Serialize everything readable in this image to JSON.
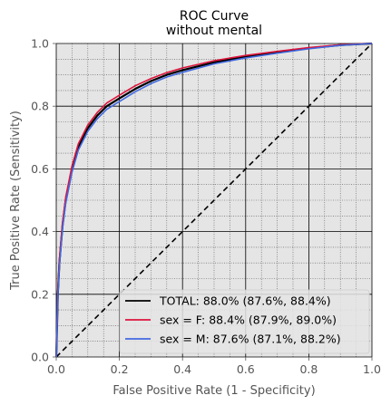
{
  "chart_data": {
    "type": "line",
    "title": "ROC Curve",
    "subtitle": "without mental",
    "xlabel": "False Positive Rate (1 - Specificity)",
    "ylabel": "True Positive Rate (Sensitivity)",
    "xlim": [
      0.0,
      1.0
    ],
    "ylim": [
      0.0,
      1.0
    ],
    "xticks": [
      "0.0",
      "0.2",
      "0.4",
      "0.6",
      "0.8",
      "1.0"
    ],
    "yticks": [
      "0.0",
      "0.2",
      "0.4",
      "0.6",
      "0.8",
      "1.0"
    ],
    "grid": true,
    "minor_grid": true,
    "legend_position": "lower-right",
    "background": "#e5e5e5",
    "series": [
      {
        "name": "TOTAL: 88.0% (87.6%, 88.4%)",
        "color": "#000000",
        "x": [
          0.0,
          0.005,
          0.01,
          0.02,
          0.03,
          0.05,
          0.07,
          0.1,
          0.13,
          0.16,
          0.2,
          0.25,
          0.3,
          0.35,
          0.4,
          0.5,
          0.6,
          0.7,
          0.8,
          0.9,
          1.0
        ],
        "y": [
          0.0,
          0.2,
          0.3,
          0.42,
          0.5,
          0.6,
          0.67,
          0.73,
          0.77,
          0.8,
          0.825,
          0.855,
          0.88,
          0.9,
          0.915,
          0.94,
          0.958,
          0.972,
          0.985,
          0.995,
          1.0
        ]
      },
      {
        "name": "sex = F: 88.4% (87.9%, 89.0%)",
        "color": "#dc143c",
        "x": [
          0.0,
          0.005,
          0.01,
          0.02,
          0.03,
          0.05,
          0.07,
          0.1,
          0.13,
          0.16,
          0.2,
          0.25,
          0.3,
          0.35,
          0.4,
          0.5,
          0.6,
          0.7,
          0.8,
          0.9,
          1.0
        ],
        "y": [
          0.0,
          0.21,
          0.31,
          0.43,
          0.51,
          0.61,
          0.68,
          0.74,
          0.78,
          0.81,
          0.835,
          0.865,
          0.888,
          0.907,
          0.922,
          0.945,
          0.962,
          0.975,
          0.987,
          0.996,
          1.0
        ]
      },
      {
        "name": "sex = M: 87.6% (87.1%, 88.2%)",
        "color": "#4169e1",
        "x": [
          0.0,
          0.005,
          0.01,
          0.02,
          0.03,
          0.05,
          0.07,
          0.1,
          0.13,
          0.16,
          0.2,
          0.25,
          0.3,
          0.35,
          0.4,
          0.5,
          0.6,
          0.7,
          0.8,
          0.9,
          1.0
        ],
        "y": [
          0.0,
          0.19,
          0.29,
          0.41,
          0.49,
          0.59,
          0.66,
          0.72,
          0.76,
          0.79,
          0.815,
          0.846,
          0.872,
          0.893,
          0.908,
          0.935,
          0.954,
          0.969,
          0.983,
          0.994,
          1.0
        ]
      }
    ],
    "reference_line": {
      "x": [
        0.0,
        1.0
      ],
      "y": [
        0.0,
        1.0
      ],
      "style": "dashed",
      "color": "#000000"
    }
  }
}
